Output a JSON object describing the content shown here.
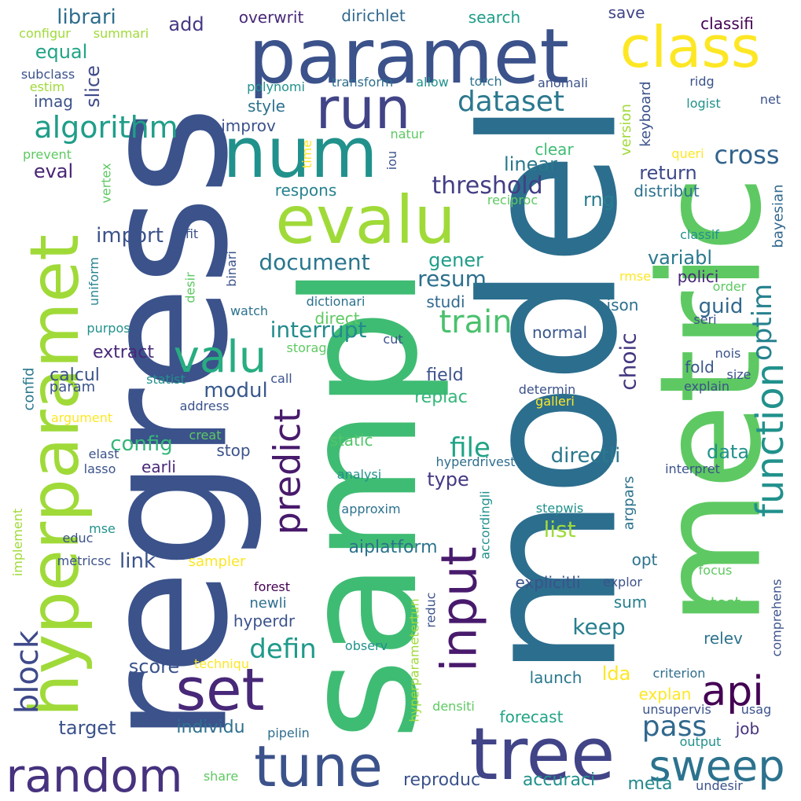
{
  "words": [
    {
      "text": "model",
      "size": 236,
      "color": "#2c6e8e",
      "vertical": true
    },
    {
      "text": "regress",
      "size": 220,
      "color": "#3b528b",
      "vertical": true
    },
    {
      "text": "sampl",
      "size": 200,
      "color": "#3fbc73",
      "vertical": true
    },
    {
      "text": "metric",
      "size": 178,
      "color": "#5ec962",
      "vertical": true
    },
    {
      "text": "paramet",
      "size": 96,
      "color": "#3b528b",
      "vertical": false
    },
    {
      "text": "tree",
      "size": 92,
      "color": "#414487",
      "vertical": false
    },
    {
      "text": "hyperparamet",
      "size": 86,
      "color": "#a0da39",
      "vertical": true
    },
    {
      "text": "num",
      "size": 88,
      "color": "#21918c",
      "vertical": false
    },
    {
      "text": "evalu",
      "size": 84,
      "color": "#a0da39",
      "vertical": false
    },
    {
      "text": "class",
      "size": 72,
      "color": "#fde725",
      "vertical": false
    },
    {
      "text": "tune",
      "size": 72,
      "color": "#3b528b",
      "vertical": false
    },
    {
      "text": "set",
      "size": 74,
      "color": "#482878",
      "vertical": false
    },
    {
      "text": "run",
      "size": 72,
      "color": "#414487",
      "vertical": false
    },
    {
      "text": "input",
      "size": 62,
      "color": "#481a6c",
      "vertical": true
    },
    {
      "text": "random",
      "size": 58,
      "color": "#46327e",
      "vertical": false
    },
    {
      "text": "valu",
      "size": 56,
      "color": "#27ad81",
      "vertical": false
    },
    {
      "text": "sweep",
      "size": 54,
      "color": "#2c728e",
      "vertical": false
    },
    {
      "text": "api",
      "size": 52,
      "color": "#440154",
      "vertical": false
    },
    {
      "text": "function",
      "size": 48,
      "color": "#21918c",
      "vertical": true
    },
    {
      "text": "predict",
      "size": 46,
      "color": "#481a6c",
      "vertical": true
    },
    {
      "text": "block",
      "size": 40,
      "color": "#3e4a89",
      "vertical": true
    },
    {
      "text": "train",
      "size": 40,
      "color": "#4ac16d",
      "vertical": false
    },
    {
      "text": "algorithm",
      "size": 38,
      "color": "#1f9e89",
      "vertical": false
    },
    {
      "text": "dataset",
      "size": 36,
      "color": "#2a788e",
      "vertical": false
    },
    {
      "text": "pass",
      "size": 36,
      "color": "#31688e",
      "vertical": false
    },
    {
      "text": "file",
      "size": 34,
      "color": "#20a486",
      "vertical": false
    },
    {
      "text": "optim",
      "size": 34,
      "color": "#26828e",
      "vertical": true
    },
    {
      "text": "defin",
      "size": 34,
      "color": "#1f9a8a",
      "vertical": false
    },
    {
      "text": "cross",
      "size": 32,
      "color": "#33638d",
      "vertical": false
    },
    {
      "text": "threshold",
      "size": 30,
      "color": "#433e85",
      "vertical": false
    },
    {
      "text": "interrupt",
      "size": 28,
      "color": "#228c8d",
      "vertical": false
    },
    {
      "text": "document",
      "size": 28,
      "color": "#2a768e",
      "vertical": false
    },
    {
      "text": "resum",
      "size": 28,
      "color": "#2d708e",
      "vertical": false
    },
    {
      "text": "keep",
      "size": 28,
      "color": "#277f8e",
      "vertical": false
    },
    {
      "text": "choic",
      "size": 28,
      "color": "#453781",
      "vertical": true
    },
    {
      "text": "list",
      "size": 28,
      "color": "#a0da39",
      "vertical": false
    },
    {
      "text": "librari",
      "size": 26,
      "color": "#2e6e8e",
      "vertical": false
    },
    {
      "text": "import",
      "size": 26,
      "color": "#3b528b",
      "vertical": false
    },
    {
      "text": "modul",
      "size": 26,
      "color": "#38598c",
      "vertical": false
    },
    {
      "text": "config",
      "size": 26,
      "color": "#35b779",
      "vertical": false
    },
    {
      "text": "link",
      "size": 26,
      "color": "#3b528b",
      "vertical": false
    },
    {
      "text": "directli",
      "size": 26,
      "color": "#2a788e",
      "vertical": false
    },
    {
      "text": "guid",
      "size": 26,
      "color": "#31688e",
      "vertical": false
    },
    {
      "text": "linear",
      "size": 24,
      "color": "#2a788e",
      "vertical": false
    },
    {
      "text": "return",
      "size": 24,
      "color": "#3e4989",
      "vertical": false
    },
    {
      "text": "variabl",
      "size": 24,
      "color": "#2a788e",
      "vertical": false
    },
    {
      "text": "gener",
      "size": 24,
      "color": "#1f9e89",
      "vertical": false
    },
    {
      "text": "data",
      "size": 24,
      "color": "#21918c",
      "vertical": false
    },
    {
      "text": "type",
      "size": 24,
      "color": "#443983",
      "vertical": false
    },
    {
      "text": "add",
      "size": 24,
      "color": "#443983",
      "vertical": false
    },
    {
      "text": "score",
      "size": 24,
      "color": "#3b528b",
      "vertical": false
    },
    {
      "text": "target",
      "size": 24,
      "color": "#3b528b",
      "vertical": false
    },
    {
      "text": "slice",
      "size": 24,
      "color": "#3e4989",
      "vertical": true
    },
    {
      "text": "equal",
      "size": 24,
      "color": "#20a486",
      "vertical": false
    },
    {
      "text": "eval",
      "size": 24,
      "color": "#482475",
      "vertical": false
    },
    {
      "text": "rng",
      "size": 24,
      "color": "#287d8e",
      "vertical": false
    },
    {
      "text": "lda",
      "size": 24,
      "color": "#fde725",
      "vertical": false
    },
    {
      "text": "individu",
      "size": 22,
      "color": "#2d708e",
      "vertical": false
    },
    {
      "text": "aiplatform",
      "size": 22,
      "color": "#2c728e",
      "vertical": false
    },
    {
      "text": "accuraci",
      "size": 22,
      "color": "#21918c",
      "vertical": false
    },
    {
      "text": "reproduc",
      "size": 22,
      "color": "#3b528b",
      "vertical": false
    },
    {
      "text": "meta",
      "size": 22,
      "color": "#23898e",
      "vertical": false
    },
    {
      "text": "field",
      "size": 22,
      "color": "#3b528b",
      "vertical": false
    },
    {
      "text": "replac",
      "size": 22,
      "color": "#35b779",
      "vertical": false
    },
    {
      "text": "extract",
      "size": 22,
      "color": "#482878",
      "vertical": false
    },
    {
      "text": "calcul",
      "size": 22,
      "color": "#3b528b",
      "vertical": false
    },
    {
      "text": "studi",
      "size": 20,
      "color": "#30698e",
      "vertical": false
    },
    {
      "text": "normal",
      "size": 20,
      "color": "#39568c",
      "vertical": false
    },
    {
      "text": "job",
      "size": 20,
      "color": "#46327e",
      "vertical": false
    },
    {
      "text": "opt",
      "size": 20,
      "color": "#2c738e",
      "vertical": false
    },
    {
      "text": "test",
      "size": 20,
      "color": "#5ec962",
      "vertical": false
    },
    {
      "text": "relev",
      "size": 20,
      "color": "#2c728e",
      "vertical": false
    },
    {
      "text": "sum",
      "size": 20,
      "color": "#277f8e",
      "vertical": false
    },
    {
      "text": "fold",
      "size": 20,
      "color": "#39568c",
      "vertical": false
    },
    {
      "text": "json",
      "size": 20,
      "color": "#2d708e",
      "vertical": false
    },
    {
      "text": "polici",
      "size": 20,
      "color": "#482878",
      "vertical": false
    },
    {
      "text": "classifi",
      "size": 20,
      "color": "#440154",
      "vertical": false
    },
    {
      "text": "save",
      "size": 20,
      "color": "#414487",
      "vertical": false
    },
    {
      "text": "overwrit",
      "size": 20,
      "color": "#482878",
      "vertical": false
    },
    {
      "text": "dirichlet",
      "size": 20,
      "color": "#31688e",
      "vertical": false
    },
    {
      "text": "search",
      "size": 20,
      "color": "#1f9e89",
      "vertical": false
    },
    {
      "text": "style",
      "size": 20,
      "color": "#2c728e",
      "vertical": false
    },
    {
      "text": "improv",
      "size": 20,
      "color": "#3b528b",
      "vertical": false
    },
    {
      "text": "imag",
      "size": 20,
      "color": "#3b528b",
      "vertical": false
    },
    {
      "text": "clear",
      "size": 20,
      "color": "#3fbc73",
      "vertical": false
    },
    {
      "text": "respons",
      "size": 20,
      "color": "#26828e",
      "vertical": false
    },
    {
      "text": "distribut",
      "size": 20,
      "color": "#2c728e",
      "vertical": false
    },
    {
      "text": "earli",
      "size": 20,
      "color": "#482878",
      "vertical": false
    },
    {
      "text": "stop",
      "size": 20,
      "color": "#3b528b",
      "vertical": false
    },
    {
      "text": "static",
      "size": 20,
      "color": "#52c569",
      "vertical": false
    },
    {
      "text": "direct",
      "size": 20,
      "color": "#5ec962",
      "vertical": false
    },
    {
      "text": "explan",
      "size": 20,
      "color": "#fde725",
      "vertical": false
    },
    {
      "text": "forecast",
      "size": 20,
      "color": "#20a486",
      "vertical": false
    },
    {
      "text": "launch",
      "size": 20,
      "color": "#2a788e",
      "vertical": false
    },
    {
      "text": "explicitli",
      "size": 20,
      "color": "#3b528b",
      "vertical": false
    },
    {
      "text": "newli",
      "size": 18,
      "color": "#2e6e8e",
      "vertical": false
    },
    {
      "text": "hyperdr",
      "size": 20,
      "color": "#3b528b",
      "vertical": false
    },
    {
      "text": "sampler",
      "size": 18,
      "color": "#fde725",
      "vertical": false
    },
    {
      "text": "param",
      "size": 18,
      "color": "#3b528b",
      "vertical": false
    },
    {
      "text": "version",
      "size": 18,
      "color": "#a0da39",
      "vertical": true
    },
    {
      "text": "keyboard",
      "size": 18,
      "color": "#3b528b",
      "vertical": true
    },
    {
      "text": "bayesian",
      "size": 18,
      "color": "#31688e",
      "vertical": true
    },
    {
      "text": "argpars",
      "size": 18,
      "color": "#2c728e",
      "vertical": true
    },
    {
      "text": "confid",
      "size": 18,
      "color": "#2a788e",
      "vertical": true
    },
    {
      "text": "uniform",
      "size": 16,
      "color": "#26828e",
      "vertical": true
    },
    {
      "text": "binari",
      "size": 16,
      "color": "#3b528b",
      "vertical": true
    },
    {
      "text": "implement",
      "size": 16,
      "color": "#a0da39",
      "vertical": true
    },
    {
      "text": "hyperparametertun",
      "size": 16,
      "color": "#a0da39",
      "vertical": true
    },
    {
      "text": "criterion",
      "size": 16,
      "color": "#2e6e8e",
      "vertical": false
    },
    {
      "text": "iou",
      "size": 16,
      "color": "#3b528b",
      "vertical": true
    },
    {
      "text": "pipelin",
      "size": 16,
      "color": "#2e6e8e",
      "vertical": false
    },
    {
      "text": "forest",
      "size": 16,
      "color": "#440154",
      "vertical": false
    },
    {
      "text": "unsupervis",
      "size": 16,
      "color": "#3b528b",
      "vertical": false
    },
    {
      "text": "usag",
      "size": 16,
      "color": "#3b528b",
      "vertical": false
    },
    {
      "text": "output",
      "size": 16,
      "color": "#21918c",
      "vertical": false
    },
    {
      "text": "undesir",
      "size": 16,
      "color": "#3b528b",
      "vertical": false
    },
    {
      "text": "interpret",
      "size": 16,
      "color": "#3b528b",
      "vertical": false
    },
    {
      "text": "determin",
      "size": 16,
      "color": "#3b528b",
      "vertical": false
    },
    {
      "text": "explain",
      "size": 16,
      "color": "#3b528b",
      "vertical": false
    },
    {
      "text": "size",
      "size": 16,
      "color": "#3b528b",
      "vertical": false
    },
    {
      "text": "nois",
      "size": 16,
      "color": "#3b528b",
      "vertical": false
    },
    {
      "text": "dictionari",
      "size": 16,
      "color": "#2c728e",
      "vertical": false
    },
    {
      "text": "watch",
      "size": 16,
      "color": "#2c728e",
      "vertical": false
    },
    {
      "text": "polynomi",
      "size": 16,
      "color": "#21918c",
      "vertical": false
    },
    {
      "text": "transform",
      "size": 16,
      "color": "#2e6e8e",
      "vertical": false
    },
    {
      "text": "allow",
      "size": 16,
      "color": "#21918c",
      "vertical": false
    },
    {
      "text": "torch",
      "size": 16,
      "color": "#2c728e",
      "vertical": false
    },
    {
      "text": "anomali",
      "size": 16,
      "color": "#3b528b",
      "vertical": false
    },
    {
      "text": "ridg",
      "size": 16,
      "color": "#3b528b",
      "vertical": false
    },
    {
      "text": "net",
      "size": 16,
      "color": "#3b528b",
      "vertical": false
    },
    {
      "text": "logist",
      "size": 16,
      "color": "#21918c",
      "vertical": false
    },
    {
      "text": "subclass",
      "size": 16,
      "color": "#3b528b",
      "vertical": false
    },
    {
      "text": "estim",
      "size": 16,
      "color": "#a0da39",
      "vertical": false
    },
    {
      "text": "configur",
      "size": 16,
      "color": "#a0da39",
      "vertical": false
    },
    {
      "text": "summari",
      "size": 16,
      "color": "#a0da39",
      "vertical": false
    },
    {
      "text": "prevent",
      "size": 16,
      "color": "#5ec962",
      "vertical": false
    },
    {
      "text": "natur",
      "size": 16,
      "color": "#5ec962",
      "vertical": false
    },
    {
      "text": "queri",
      "size": 16,
      "color": "#fde725",
      "vertical": false
    },
    {
      "text": "reciproc",
      "size": 16,
      "color": "#5ec962",
      "vertical": false
    },
    {
      "text": "classif",
      "size": 16,
      "color": "#21918c",
      "vertical": false
    },
    {
      "text": "rmse",
      "size": 16,
      "color": "#fde725",
      "vertical": false
    },
    {
      "text": "order",
      "size": 16,
      "color": "#5ec962",
      "vertical": false
    },
    {
      "text": "seri",
      "size": 16,
      "color": "#3b528b",
      "vertical": false
    },
    {
      "text": "fit",
      "size": 16,
      "color": "#3b528b",
      "vertical": false
    },
    {
      "text": "purpos",
      "size": 16,
      "color": "#21918c",
      "vertical": false
    },
    {
      "text": "storag",
      "size": 16,
      "color": "#5ec962",
      "vertical": false
    },
    {
      "text": "cut",
      "size": 16,
      "color": "#3b528b",
      "vertical": false
    },
    {
      "text": "statist",
      "size": 16,
      "color": "#21918c",
      "vertical": false
    },
    {
      "text": "call",
      "size": 16,
      "color": "#3b528b",
      "vertical": false
    },
    {
      "text": "argument",
      "size": 16,
      "color": "#fde725",
      "vertical": false
    },
    {
      "text": "address",
      "size": 16,
      "color": "#3b528b",
      "vertical": false
    },
    {
      "text": "galleri",
      "size": 16,
      "color": "#fde725",
      "vertical": false
    },
    {
      "text": "creat",
      "size": 16,
      "color": "#5ec962",
      "vertical": false
    },
    {
      "text": "elast",
      "size": 16,
      "color": "#3b528b",
      "vertical": false
    },
    {
      "text": "lasso",
      "size": 16,
      "color": "#3b528b",
      "vertical": false
    },
    {
      "text": "hyperdrivestep",
      "size": 16,
      "color": "#2e6e8e",
      "vertical": false
    },
    {
      "text": "analysi",
      "size": 16,
      "color": "#21918c",
      "vertical": false
    },
    {
      "text": "approxim",
      "size": 16,
      "color": "#2c728e",
      "vertical": false
    },
    {
      "text": "stepwis",
      "size": 16,
      "color": "#21918c",
      "vertical": false
    },
    {
      "text": "mse",
      "size": 16,
      "color": "#21918c",
      "vertical": false
    },
    {
      "text": "educ",
      "size": 16,
      "color": "#3b528b",
      "vertical": false
    },
    {
      "text": "metricsc",
      "size": 16,
      "color": "#3b528b",
      "vertical": false
    },
    {
      "text": "focus",
      "size": 16,
      "color": "#5ec962",
      "vertical": false
    },
    {
      "text": "explor",
      "size": 16,
      "color": "#3b528b",
      "vertical": false
    },
    {
      "text": "observ",
      "size": 16,
      "color": "#21918c",
      "vertical": false
    },
    {
      "text": "techniqu",
      "size": 16,
      "color": "#fde725",
      "vertical": false
    },
    {
      "text": "densiti",
      "size": 16,
      "color": "#5ec962",
      "vertical": false
    },
    {
      "text": "share",
      "size": 16,
      "color": "#5ec962",
      "vertical": false
    },
    {
      "text": "comprehens",
      "size": 16,
      "color": "#3b528b",
      "vertical": true
    },
    {
      "text": "accordingli",
      "size": 16,
      "color": "#21918c",
      "vertical": true
    },
    {
      "text": "reduc",
      "size": 16,
      "color": "#3b528b",
      "vertical": true
    },
    {
      "text": "desir",
      "size": 16,
      "color": "#5ec962",
      "vertical": true
    },
    {
      "text": "vertex",
      "size": 16,
      "color": "#5ec962",
      "vertical": true
    },
    {
      "text": "time",
      "size": 16,
      "color": "#fde725",
      "vertical": true
    }
  ]
}
